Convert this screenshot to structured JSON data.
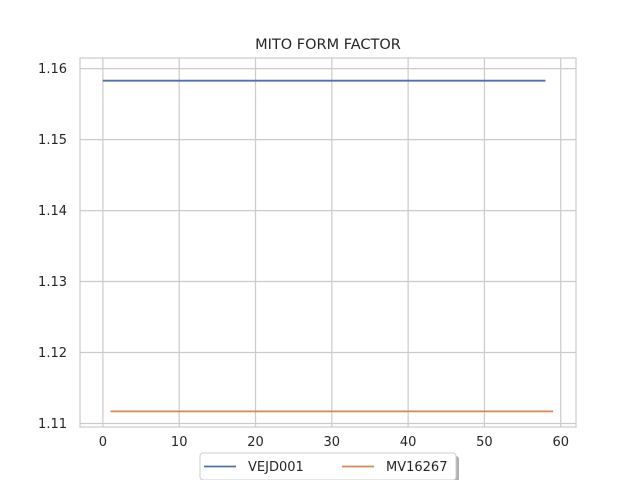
{
  "chart_data": {
    "type": "line",
    "title": "MITO FORM FACTOR",
    "xlabel": "",
    "ylabel": "",
    "xlim": [
      -3,
      62
    ],
    "ylim": [
      1.1095,
      1.1615
    ],
    "x_ticks": [
      0,
      10,
      20,
      30,
      40,
      50,
      60
    ],
    "y_ticks": [
      1.11,
      1.12,
      1.13,
      1.14,
      1.15,
      1.16
    ],
    "y_tick_labels": [
      "1.11",
      "1.12",
      "1.13",
      "1.14",
      "1.15",
      "1.16"
    ],
    "grid": true,
    "legend_position": "bottom-center",
    "series": [
      {
        "name": "VEJD001",
        "color": "#4C72B0",
        "x": [
          0,
          58
        ],
        "y": [
          1.1583,
          1.1583
        ]
      },
      {
        "name": "MV16267",
        "color": "#DD8452",
        "x": [
          1,
          59
        ],
        "y": [
          1.1117,
          1.1117
        ]
      }
    ]
  }
}
